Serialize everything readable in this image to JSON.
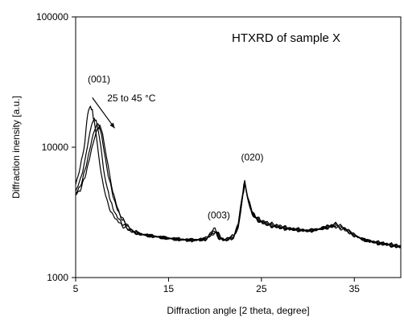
{
  "chart_data": {
    "type": "line",
    "title": "HTXRD of sample X",
    "xlabel": "Diffraction angle [2 theta, degree]",
    "ylabel": "Diffraction inensity [a.u.]",
    "xlim": [
      5,
      40
    ],
    "ylim": [
      1000,
      100000
    ],
    "y_scale": "log",
    "x_ticks": [
      5,
      15,
      25,
      35
    ],
    "y_ticks": [
      1000,
      10000,
      100000
    ],
    "y_tick_labels": [
      "1000",
      "10000",
      "100000"
    ],
    "grid": false,
    "annotations": [
      {
        "text": "(001)",
        "x": 6.3,
        "y": 31500
      },
      {
        "text": "25 to 45 °C",
        "x": 8.4,
        "y": 22500
      },
      {
        "text": "(003)",
        "x": 19.2,
        "y": 2850
      },
      {
        "text": "(020)",
        "x": 22.8,
        "y": 7900
      }
    ],
    "arrow": {
      "from": {
        "x": 6.8,
        "y": 24000
      },
      "to": {
        "x": 9.2,
        "y": 14000
      }
    },
    "series": [
      {
        "x": [
          5.0,
          5.5,
          6.0,
          6.2,
          6.4,
          6.6,
          6.8,
          7.0,
          7.3,
          7.6,
          8.0,
          8.5,
          9.0,
          10,
          11,
          12,
          13,
          14,
          15,
          16,
          17,
          18,
          19,
          19.5,
          20,
          20.5,
          21,
          22,
          22.5,
          23,
          23.2,
          23.5,
          24,
          24.5,
          25,
          26,
          27,
          28,
          29,
          30,
          31,
          32,
          33,
          34,
          35,
          36,
          37,
          38,
          39,
          40
        ],
        "y": [
          5200,
          7000,
          11000,
          16000,
          19500,
          20500,
          19000,
          15500,
          11000,
          7500,
          5000,
          3600,
          3000,
          2500,
          2250,
          2150,
          2100,
          2050,
          2000,
          1980,
          1950,
          1950,
          2000,
          2200,
          2400,
          2100,
          1950,
          2100,
          2600,
          4600,
          5600,
          4300,
          3200,
          2900,
          2750,
          2600,
          2500,
          2400,
          2350,
          2300,
          2350,
          2400,
          2450,
          2300,
          2100,
          1950,
          1900,
          1850,
          1800,
          1750
        ]
      },
      {
        "x": [
          5.0,
          5.5,
          6.0,
          6.4,
          6.8,
          7.0,
          7.2,
          7.4,
          7.7,
          8.0,
          8.4,
          9.0,
          9.5,
          10,
          11,
          12,
          13,
          14,
          15,
          16,
          17,
          18,
          19,
          19.5,
          20,
          20.5,
          21,
          22,
          22.5,
          23,
          23.2,
          23.5,
          24,
          24.5,
          25,
          26,
          27,
          28,
          29,
          30,
          31,
          32,
          33,
          34,
          35,
          36,
          37,
          38,
          39,
          40
        ],
        "y": [
          4600,
          5600,
          7800,
          11500,
          15500,
          16500,
          16000,
          14000,
          10000,
          6800,
          4800,
          3400,
          2900,
          2600,
          2250,
          2150,
          2100,
          2050,
          2000,
          1970,
          1950,
          1950,
          1980,
          2150,
          2300,
          2050,
          1950,
          2050,
          2500,
          4400,
          5400,
          4200,
          3150,
          2850,
          2700,
          2550,
          2450,
          2380,
          2330,
          2300,
          2340,
          2420,
          2500,
          2350,
          2100,
          1950,
          1880,
          1830,
          1780,
          1730
        ]
      },
      {
        "x": [
          5.0,
          5.5,
          6.0,
          6.5,
          7.0,
          7.3,
          7.5,
          7.8,
          8.1,
          8.5,
          9.0,
          9.5,
          10,
          11,
          12,
          13,
          14,
          15,
          16,
          17,
          18,
          19,
          19.5,
          20,
          20.5,
          21,
          22,
          22.5,
          23,
          23.2,
          23.5,
          24,
          24.5,
          25,
          26,
          27,
          28,
          29,
          30,
          31,
          32,
          33,
          34,
          35,
          36,
          37,
          38,
          39,
          40
        ],
        "y": [
          4400,
          5000,
          6600,
          9500,
          13500,
          15200,
          14800,
          12500,
          9000,
          6200,
          4300,
          3300,
          2800,
          2300,
          2150,
          2080,
          2040,
          2000,
          1960,
          1940,
          1940,
          1970,
          2100,
          2250,
          2000,
          1930,
          2030,
          2450,
          4300,
          5300,
          4100,
          3100,
          2800,
          2650,
          2500,
          2420,
          2360,
          2310,
          2280,
          2330,
          2450,
          2550,
          2380,
          2120,
          1960,
          1870,
          1810,
          1760,
          1710
        ]
      },
      {
        "x": [
          5.0,
          5.5,
          6.0,
          6.5,
          7.0,
          7.4,
          7.6,
          7.9,
          8.2,
          8.6,
          9.0,
          9.5,
          10,
          11,
          12,
          13,
          14,
          15,
          16,
          17,
          18,
          19,
          19.5,
          20,
          20.5,
          21,
          22,
          22.5,
          23,
          23.2,
          23.5,
          24,
          24.5,
          25,
          26,
          27,
          28,
          29,
          30,
          31,
          32,
          33,
          34,
          35,
          36,
          37,
          38,
          39,
          40
        ],
        "y": [
          4300,
          4700,
          5900,
          8200,
          11800,
          14000,
          14400,
          12800,
          9500,
          6500,
          4600,
          3400,
          2850,
          2320,
          2160,
          2090,
          2040,
          2000,
          1960,
          1930,
          1930,
          1960,
          2080,
          2200,
          1980,
          1920,
          2020,
          2400,
          4200,
          5200,
          4000,
          3050,
          2780,
          2630,
          2480,
          2400,
          2340,
          2300,
          2270,
          2320,
          2470,
          2600,
          2400,
          2130,
          1950,
          1860,
          1800,
          1750,
          1700
        ]
      }
    ]
  }
}
